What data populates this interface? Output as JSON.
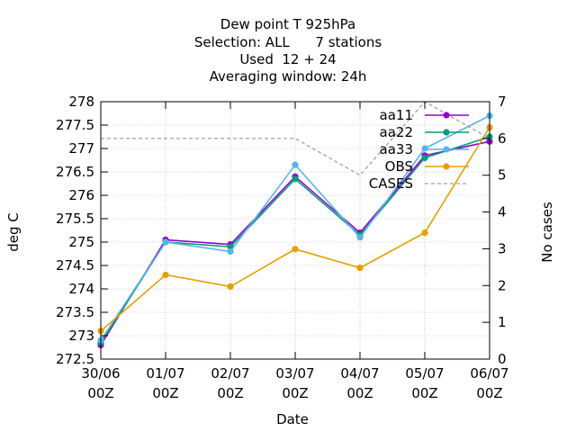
{
  "chart_data": {
    "type": "line",
    "title_lines": [
      "Dew point T 925hPa",
      "Selection: ALL      7 stations",
      "Used  12 + 24",
      "Averaging window: 24h"
    ],
    "xlabel": "Date",
    "ylabel": "deg C",
    "y2label": "No cases",
    "x_ticks": [
      {
        "line1": "30/06",
        "line2": "00Z"
      },
      {
        "line1": "01/07",
        "line2": "00Z"
      },
      {
        "line1": "02/07",
        "line2": "00Z"
      },
      {
        "line1": "03/07",
        "line2": "00Z"
      },
      {
        "line1": "04/07",
        "line2": "00Z"
      },
      {
        "line1": "05/07",
        "line2": "00Z"
      },
      {
        "line1": "06/07",
        "line2": "00Z"
      }
    ],
    "ylim": [
      272.5,
      278
    ],
    "y_ticks": [
      "272.5",
      "273",
      "273.5",
      "274",
      "274.5",
      "275",
      "275.5",
      "276",
      "276.5",
      "277",
      "277.5",
      "278"
    ],
    "y2lim": [
      0,
      7
    ],
    "y2_ticks": [
      "0",
      "1",
      "2",
      "3",
      "4",
      "5",
      "6",
      "7"
    ],
    "grid": true,
    "legend_position": "top-right",
    "series": [
      {
        "name": "aa11",
        "axis": "y1",
        "color": "#9400d3",
        "marker": "circle",
        "dash": "none",
        "x": [
          0,
          1,
          2,
          3,
          4,
          5,
          6
        ],
        "values": [
          272.8,
          275.05,
          274.95,
          276.4,
          275.2,
          276.85,
          277.15
        ]
      },
      {
        "name": "aa22",
        "axis": "y1",
        "color": "#009e73",
        "marker": "circle",
        "dash": "none",
        "x": [
          0,
          1,
          2,
          3,
          4,
          5,
          6
        ],
        "values": [
          272.85,
          275.0,
          274.9,
          276.35,
          275.15,
          276.8,
          277.25
        ]
      },
      {
        "name": "aa33",
        "axis": "y1",
        "color": "#56b4e9",
        "marker": "circle",
        "dash": "none",
        "x": [
          0,
          1,
          2,
          3,
          4,
          5,
          6
        ],
        "values": [
          272.9,
          275.0,
          274.8,
          276.65,
          275.1,
          277.0,
          277.7
        ]
      },
      {
        "name": "OBS",
        "axis": "y1",
        "color": "#e69f00",
        "marker": "circle",
        "dash": "none",
        "x": [
          0,
          1,
          2,
          3,
          4,
          5,
          6
        ],
        "values": [
          273.1,
          274.3,
          274.05,
          274.85,
          274.45,
          275.2,
          277.45
        ]
      },
      {
        "name": "CASES",
        "axis": "y2",
        "color": "#a0a0a0",
        "marker": "none",
        "dash": "dashed",
        "x": [
          0,
          1,
          2,
          3,
          4,
          5,
          6
        ],
        "values": [
          6,
          6,
          6,
          6,
          5,
          7,
          6
        ]
      }
    ]
  }
}
